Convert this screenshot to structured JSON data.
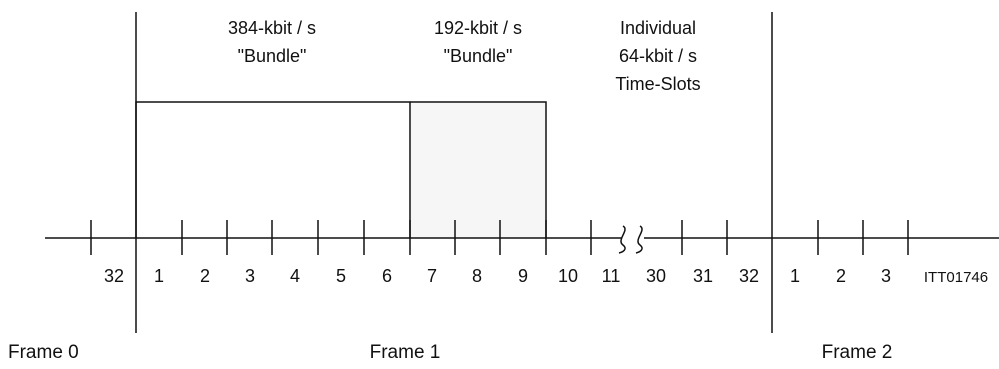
{
  "bundles": {
    "bundle_384": {
      "line1": "384-kbit / s",
      "line2": "\"Bundle\""
    },
    "bundle_192": {
      "line1": "192-kbit / s",
      "line2": "\"Bundle\""
    },
    "individual": {
      "line1": "Individual",
      "line2": "64-kbit / s",
      "line3": "Time-Slots"
    }
  },
  "slots": [
    "32",
    "1",
    "2",
    "3",
    "4",
    "5",
    "6",
    "7",
    "8",
    "9",
    "10",
    "11",
    "30",
    "31",
    "32",
    "1",
    "2",
    "3"
  ],
  "figure_code": "ITT01746",
  "frames": {
    "frame0": "Frame 0",
    "frame1": "Frame 1",
    "frame2": "Frame 2"
  }
}
